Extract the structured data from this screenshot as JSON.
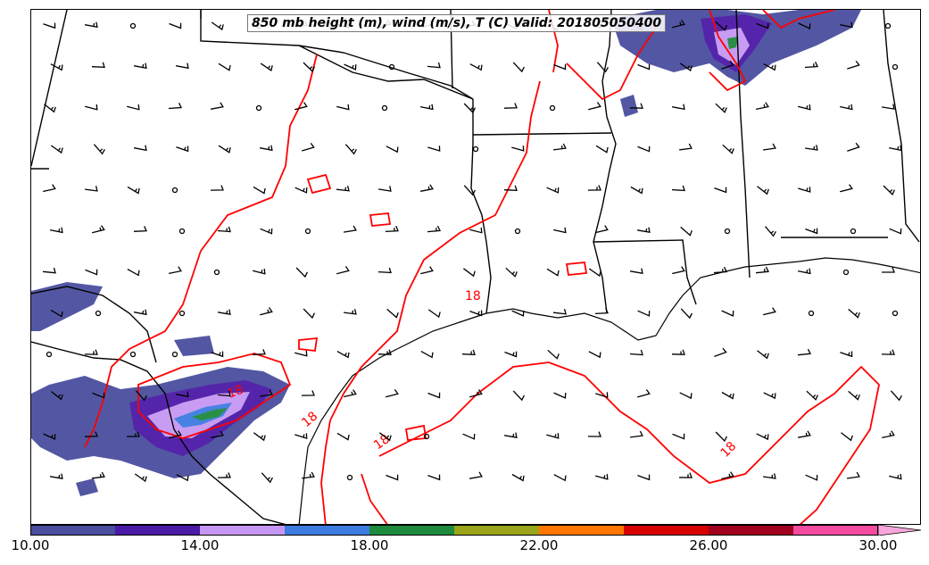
{
  "title": "850 mb height (m), wind (m/s), T (C) Valid: 201805050400",
  "contour_labels": [
    "18",
    "18",
    "18",
    "18",
    "18"
  ],
  "colorbar": {
    "ticks": [
      "10.00",
      "14.00",
      "18.00",
      "22.00",
      "26.00",
      "30.00"
    ],
    "colors": [
      "#4a4e9e",
      "#4b1aa6",
      "#c597f2",
      "#3c7ce0",
      "#1e8a3e",
      "#9aa51a",
      "#ff7700",
      "#d60000",
      "#a0001e",
      "#f44aa0",
      "#f7a6dc"
    ],
    "extend": "max"
  },
  "contour_color": "#ff0000"
}
